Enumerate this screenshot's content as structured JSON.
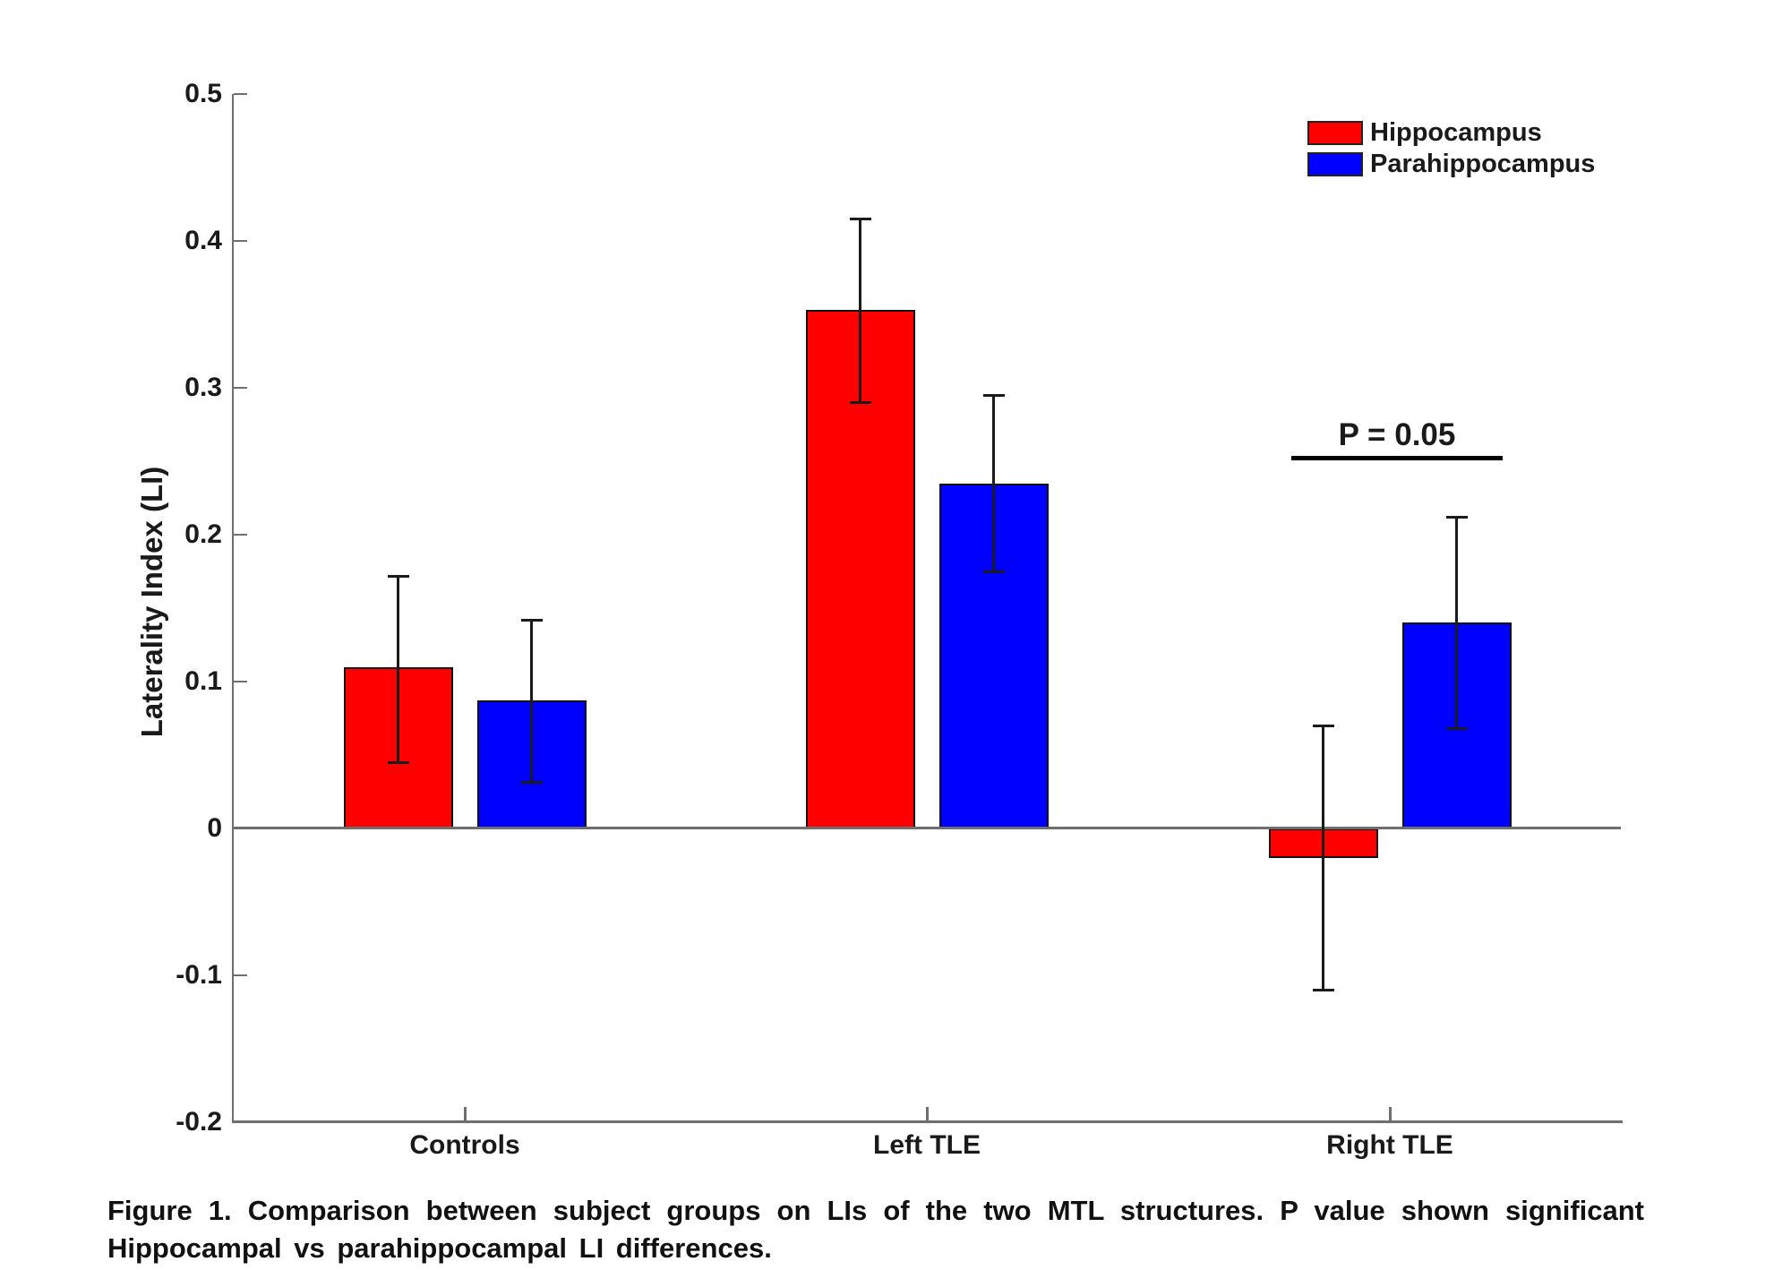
{
  "figure": {
    "caption_line1": "Figure 1. Comparison between subject groups on LIs of the two MTL structures. P value shown significant",
    "caption_line2": "Hippocampal vs parahippocampal LI differences."
  },
  "chart_data": {
    "type": "bar",
    "title": "",
    "xlabel": "",
    "ylabel": "Laterality Index (LI)",
    "categories": [
      "Controls",
      "Left TLE",
      "Right TLE"
    ],
    "series": [
      {
        "name": "Hippocampus",
        "color": "#ff0000",
        "values": [
          0.11,
          0.353,
          -0.02
        ],
        "error_low": [
          0.045,
          0.29,
          -0.11
        ],
        "error_high": [
          0.172,
          0.415,
          0.07
        ]
      },
      {
        "name": "Parahippocampus",
        "color": "#0000ff",
        "values": [
          0.087,
          0.235,
          0.14
        ],
        "error_low": [
          0.032,
          0.175,
          0.068
        ],
        "error_high": [
          0.142,
          0.295,
          0.212
        ]
      }
    ],
    "ylim": [
      -0.2,
      0.5
    ],
    "yticks": [
      0.5,
      0.4,
      0.3,
      0.2,
      0.1,
      0,
      -0.1,
      -0.2
    ],
    "grid": false,
    "legend_position": "top-right",
    "annotation": {
      "text": "P = 0.05",
      "over_category": "Right TLE"
    }
  }
}
